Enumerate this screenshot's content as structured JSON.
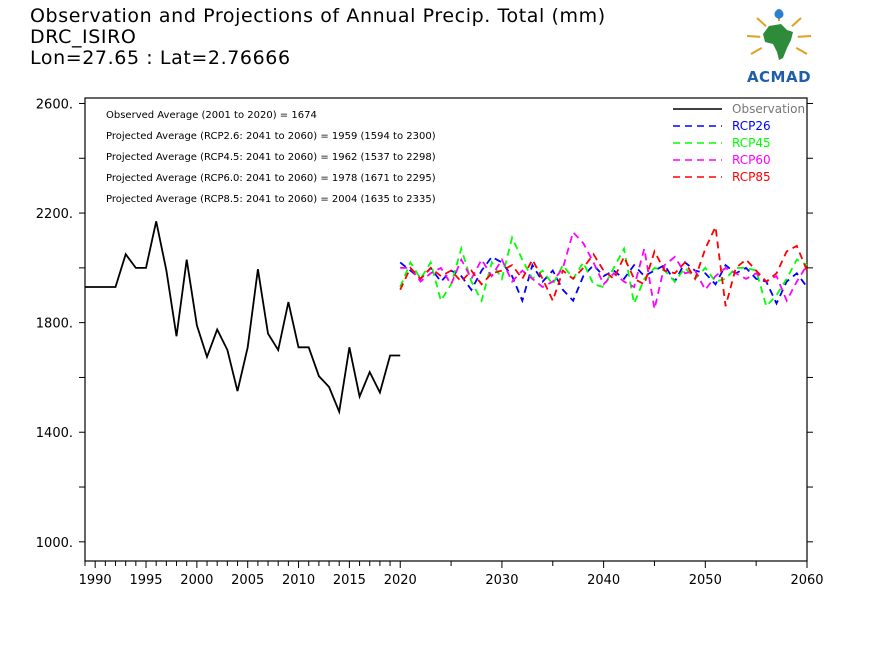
{
  "header": {
    "line1": "Observation and Projections of Annual Precip. Total (mm)",
    "line2": "DRC_ISIRO",
    "line3": "Lon=27.65 : Lat=2.76666"
  },
  "logo": {
    "text": "ACMAD",
    "icon": "africa-map-water-drop-icon"
  },
  "chart_data": {
    "type": "line",
    "title": "Observation and Projections of Annual Precip. Total (mm)",
    "xlim": [
      1989,
      2060
    ],
    "ylim": [
      930,
      2620
    ],
    "yticks_labeled": [
      1000,
      1400,
      1800,
      2200,
      2600
    ],
    "ytick_labels": [
      "1000.",
      "1400.",
      "1800.",
      "2200.",
      "2600."
    ],
    "ytick_minor": [
      1200,
      1600,
      2000,
      2400
    ],
    "xticks_labeled": [
      1990,
      1995,
      2000,
      2005,
      2010,
      2015,
      2020,
      2030,
      2040,
      2050,
      2060
    ],
    "xtick_labels": [
      "1990",
      "1995",
      "2000",
      "2005",
      "2010",
      "2015",
      "2020",
      "2030",
      "2040",
      "2050",
      "2060"
    ],
    "annotations": [
      "Observed Average (2001 to 2020) = 1674",
      "Projected Average (RCP2.6: 2041 to 2060) = 1959 (1594 to 2300)",
      "Projected Average (RCP4.5: 2041 to 2060) = 1962 (1537 to 2298)",
      "Projected Average (RCP6.0: 2041 to 2060) = 1978 (1671 to 2295)",
      "Projected Average (RCP8.5: 2041 to 2060) = 2004 (1635 to 2335)"
    ],
    "legend_position": "top-right",
    "observation": {
      "name": "Observation",
      "color": "#000000",
      "x": [
        1989,
        1990,
        1991,
        1992,
        1993,
        1994,
        1995,
        1996,
        1997,
        1998,
        1999,
        2000,
        2001,
        2002,
        2003,
        2004,
        2005,
        2006,
        2007,
        2008,
        2009,
        2010,
        2011,
        2012,
        2013,
        2014,
        2015,
        2016,
        2017,
        2018,
        2019,
        2020
      ],
      "y": [
        1930,
        1930,
        1930,
        1930,
        2050,
        2000,
        2000,
        2170,
        1990,
        1750,
        2030,
        1790,
        1675,
        1775,
        1700,
        1550,
        1710,
        1995,
        1760,
        1700,
        1875,
        1710,
        1710,
        1605,
        1565,
        1475,
        1710,
        1530,
        1620,
        1545,
        1680,
        1680
      ]
    },
    "series": [
      {
        "name": "RCP26",
        "color": "#0000ff",
        "x": [
          2020,
          2021,
          2022,
          2023,
          2024,
          2025,
          2026,
          2027,
          2028,
          2029,
          2030,
          2031,
          2032,
          2033,
          2034,
          2035,
          2036,
          2037,
          2038,
          2039,
          2040,
          2041,
          2042,
          2043,
          2044,
          2045,
          2046,
          2047,
          2048,
          2049,
          2050,
          2051,
          2052,
          2053,
          2054,
          2055,
          2056,
          2057,
          2058,
          2059,
          2060
        ],
        "y": [
          2020,
          1990,
          1960,
          2000,
          1950,
          1990,
          1970,
          1920,
          1990,
          2040,
          2020,
          1970,
          1880,
          2010,
          1950,
          1990,
          1920,
          1880,
          1970,
          2010,
          1970,
          1990,
          1960,
          2010,
          1970,
          1990,
          2010,
          1950,
          2020,
          1990,
          1980,
          1940,
          2010,
          1980,
          2000,
          1960,
          1950,
          1870,
          1950,
          1980,
          1930
        ]
      },
      {
        "name": "RCP45",
        "color": "#00ff00",
        "x": [
          2020,
          2021,
          2022,
          2023,
          2024,
          2025,
          2026,
          2027,
          2028,
          2029,
          2030,
          2031,
          2032,
          2033,
          2034,
          2035,
          2036,
          2037,
          2038,
          2039,
          2040,
          2041,
          2042,
          2043,
          2044,
          2045,
          2046,
          2047,
          2048,
          2049,
          2050,
          2051,
          2052,
          2053,
          2054,
          2055,
          2056,
          2057,
          2058,
          2059,
          2060
        ],
        "y": [
          1930,
          2020,
          1960,
          2020,
          1880,
          1940,
          2070,
          1950,
          1880,
          2020,
          1960,
          2110,
          2030,
          1960,
          1990,
          1940,
          2010,
          1960,
          2020,
          1940,
          1930,
          2000,
          2070,
          1870,
          1960,
          2000,
          1990,
          1950,
          2000,
          1960,
          2000,
          1950,
          1960,
          2000,
          2000,
          1990,
          1860,
          1900,
          1960,
          2030,
          2010
        ]
      },
      {
        "name": "RCP60",
        "color": "#ff00ff",
        "x": [
          2020,
          2021,
          2022,
          2023,
          2024,
          2025,
          2026,
          2027,
          2028,
          2029,
          2030,
          2031,
          2032,
          2033,
          2034,
          2035,
          2036,
          2037,
          2038,
          2039,
          2040,
          2041,
          2042,
          2043,
          2044,
          2045,
          2046,
          2047,
          2048,
          2049,
          2050,
          2051,
          2052,
          2053,
          2054,
          2055,
          2056,
          2057,
          2058,
          2059,
          2060
        ],
        "y": [
          2000,
          2000,
          1950,
          1980,
          2000,
          1940,
          2030,
          1960,
          2030,
          1970,
          2030,
          1950,
          1990,
          1960,
          1930,
          1950,
          2000,
          2130,
          2090,
          2020,
          1940,
          1980,
          1950,
          1930,
          2070,
          1850,
          2010,
          2040,
          1980,
          1990,
          1920,
          1970,
          2000,
          1980,
          1960,
          1980,
          1950,
          1970,
          1880,
          1950,
          2010
        ]
      },
      {
        "name": "RCP85",
        "color": "#ff0000",
        "x": [
          2020,
          2021,
          2022,
          2023,
          2024,
          2025,
          2026,
          2027,
          2028,
          2029,
          2030,
          2031,
          2032,
          2033,
          2034,
          2035,
          2036,
          2037,
          2038,
          2039,
          2040,
          2041,
          2042,
          2043,
          2044,
          2045,
          2046,
          2047,
          2048,
          2049,
          2050,
          2051,
          2052,
          2053,
          2054,
          2055,
          2056,
          2057,
          2058,
          2059,
          2060
        ],
        "y": [
          1920,
          2000,
          1960,
          2000,
          1970,
          1990,
          1950,
          1990,
          1940,
          1980,
          1990,
          2010,
          1960,
          2030,
          1960,
          1880,
          1990,
          1960,
          2000,
          2050,
          1990,
          1960,
          2040,
          1960,
          1940,
          2060,
          1990,
          1980,
          2020,
          1960,
          2070,
          2150,
          1860,
          2000,
          2030,
          1990,
          1950,
          1980,
          2060,
          2080,
          1990
        ]
      }
    ]
  }
}
